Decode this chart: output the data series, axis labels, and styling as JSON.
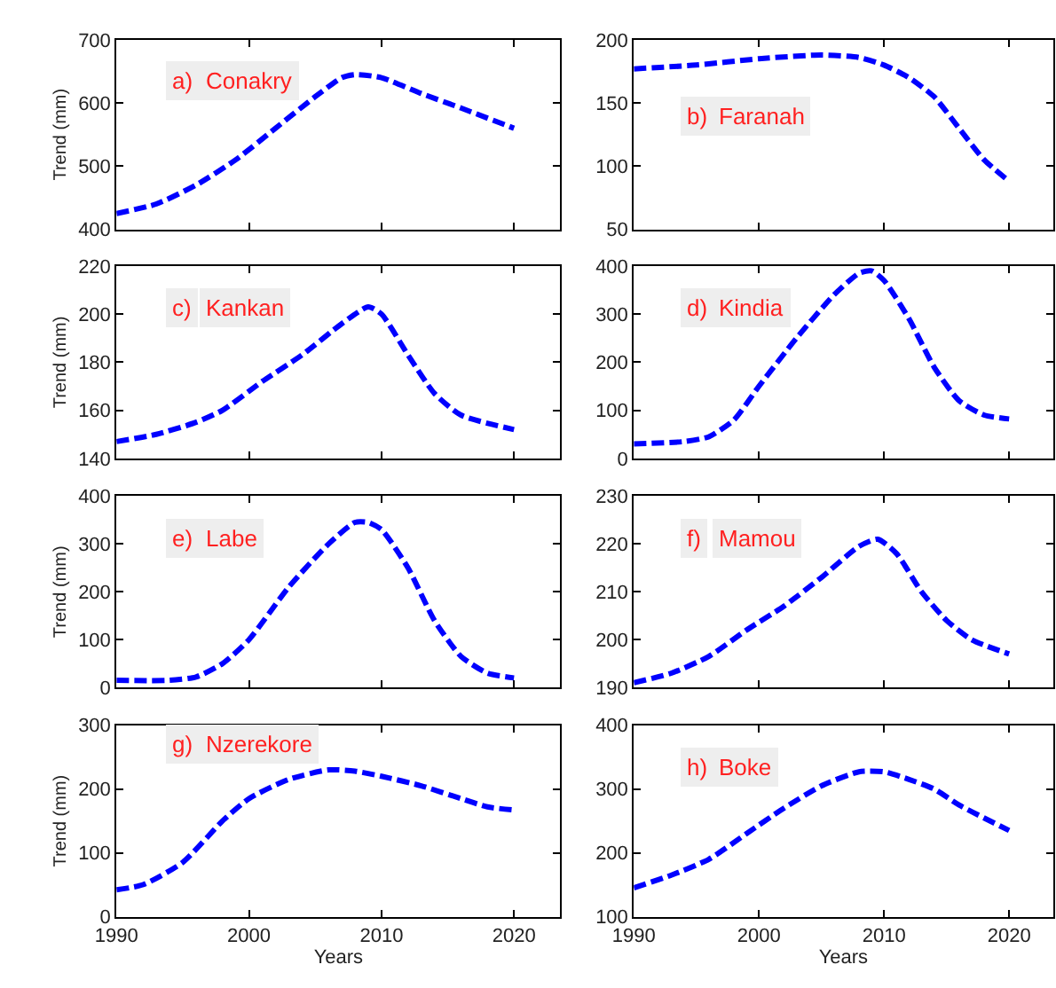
{
  "chart_data": [
    {
      "type": "line",
      "ylabel": "Trend (mm)",
      "annotations": [
        "a)",
        "Conakry"
      ],
      "tick_labels": "y",
      "line_style": "dashed",
      "xlim": [
        1990,
        2023.5
      ],
      "xticks": [
        1990,
        2000,
        2010,
        2020
      ],
      "ylim": [
        400,
        700
      ],
      "yticks": [
        400,
        500,
        600,
        700
      ],
      "series": [
        {
          "color": "#0000ff",
          "x": [
            1990,
            1993,
            1996,
            1999,
            2002,
            2005,
            2007,
            2008,
            2010,
            2013,
            2016,
            2020
          ],
          "values": [
            425,
            440,
            470,
            510,
            560,
            610,
            640,
            645,
            640,
            615,
            592,
            560
          ]
        }
      ]
    },
    {
      "type": "line",
      "annotations": [
        "b)",
        "Faranah"
      ],
      "tick_labels": "y",
      "line_style": "dashed",
      "xlim": [
        1990,
        2023.5
      ],
      "xticks": [
        1990,
        2000,
        2010,
        2020
      ],
      "ylim": [
        50,
        200
      ],
      "yticks": [
        50,
        100,
        150,
        200
      ],
      "series": [
        {
          "color": "#0000ff",
          "x": [
            1990,
            1995,
            2000,
            2005,
            2008,
            2010,
            2012,
            2014,
            2016,
            2018,
            2020
          ],
          "values": [
            177,
            180,
            185,
            188,
            186,
            180,
            170,
            155,
            130,
            105,
            88
          ]
        }
      ]
    },
    {
      "type": "line",
      "ylabel": "Trend (mm)",
      "annotations": [
        "c)",
        "Kankan"
      ],
      "tick_labels": "y",
      "line_style": "dashed",
      "xlim": [
        1990,
        2023.5
      ],
      "xticks": [
        1990,
        2000,
        2010,
        2020
      ],
      "ylim": [
        140,
        220
      ],
      "yticks": [
        140,
        160,
        180,
        200,
        220
      ],
      "series": [
        {
          "color": "#0000ff",
          "x": [
            1990,
            1993,
            1996,
            1998,
            2001,
            2004,
            2007,
            2009,
            2010,
            2012,
            2014,
            2016,
            2020
          ],
          "values": [
            147,
            150,
            155,
            160,
            172,
            183,
            196,
            203,
            200,
            183,
            167,
            158,
            152
          ]
        }
      ]
    },
    {
      "type": "line",
      "annotations": [
        "d)",
        "Kindia"
      ],
      "tick_labels": "y",
      "line_style": "dashed",
      "xlim": [
        1990,
        2023.5
      ],
      "xticks": [
        1990,
        2000,
        2010,
        2020
      ],
      "ylim": [
        0,
        400
      ],
      "yticks": [
        0,
        100,
        200,
        300,
        400
      ],
      "series": [
        {
          "color": "#0000ff",
          "x": [
            1990,
            1994,
            1996,
            1998,
            2000,
            2003,
            2006,
            2008,
            2009,
            2010,
            2012,
            2014,
            2016,
            2018,
            2020
          ],
          "values": [
            30,
            35,
            45,
            80,
            150,
            250,
            340,
            385,
            390,
            370,
            290,
            190,
            120,
            90,
            82
          ]
        }
      ]
    },
    {
      "type": "line",
      "ylabel": "Trend (mm)",
      "annotations": [
        "e)",
        "Labe"
      ],
      "tick_labels": "y",
      "line_style": "dashed",
      "xlim": [
        1990,
        2023.5
      ],
      "xticks": [
        1990,
        2000,
        2010,
        2020
      ],
      "ylim": [
        0,
        400
      ],
      "yticks": [
        0,
        100,
        200,
        300,
        400
      ],
      "series": [
        {
          "color": "#0000ff",
          "x": [
            1990,
            1994,
            1996,
            1998,
            2000,
            2003,
            2006,
            2008,
            2009,
            2010,
            2012,
            2014,
            2016,
            2018,
            2020
          ],
          "values": [
            15,
            15,
            22,
            50,
            100,
            210,
            300,
            345,
            345,
            330,
            250,
            140,
            65,
            30,
            20
          ]
        }
      ]
    },
    {
      "type": "line",
      "annotations": [
        "f)",
        "Mamou"
      ],
      "tick_labels": "y",
      "line_style": "dashed",
      "xlim": [
        1990,
        2023.5
      ],
      "xticks": [
        1990,
        2000,
        2010,
        2020
      ],
      "ylim": [
        190,
        230
      ],
      "yticks": [
        190,
        200,
        210,
        220,
        230
      ],
      "series": [
        {
          "color": "#0000ff",
          "x": [
            1990,
            1993,
            1996,
            1999,
            2002,
            2005,
            2008,
            2009.5,
            2011,
            2013,
            2015,
            2017,
            2020
          ],
          "values": [
            191,
            193,
            196.5,
            202,
            207,
            213,
            219.5,
            221,
            218,
            210,
            204,
            200,
            197
          ]
        }
      ]
    },
    {
      "type": "line",
      "xlabel": "Years",
      "ylabel": "Trend (mm)",
      "annotations": [
        "g)",
        "Nzerekore"
      ],
      "line_style": "dashed",
      "xlim": [
        1990,
        2023.5
      ],
      "xticks": [
        1990,
        2000,
        2010,
        2020
      ],
      "ylim": [
        0,
        300
      ],
      "yticks": [
        0,
        100,
        200,
        300
      ],
      "series": [
        {
          "color": "#0000ff",
          "x": [
            1990,
            1992,
            1995,
            1998,
            2000,
            2003,
            2006,
            2008,
            2010,
            2013,
            2016,
            2018,
            2020
          ],
          "values": [
            42,
            50,
            85,
            150,
            185,
            215,
            230,
            228,
            220,
            205,
            185,
            172,
            167
          ]
        }
      ]
    },
    {
      "type": "line",
      "xlabel": "Years",
      "annotations": [
        "h)",
        "Boke"
      ],
      "line_style": "dashed",
      "xlim": [
        1990,
        2023.5
      ],
      "xticks": [
        1990,
        2000,
        2010,
        2020
      ],
      "ylim": [
        100,
        400
      ],
      "yticks": [
        100,
        200,
        300,
        400
      ],
      "series": [
        {
          "color": "#0000ff",
          "x": [
            1990,
            1993,
            1996,
            1999,
            2002,
            2005,
            2008,
            2010,
            2012,
            2014,
            2016,
            2020
          ],
          "values": [
            145,
            165,
            190,
            230,
            270,
            305,
            327,
            327,
            315,
            300,
            275,
            235
          ]
        }
      ]
    }
  ]
}
